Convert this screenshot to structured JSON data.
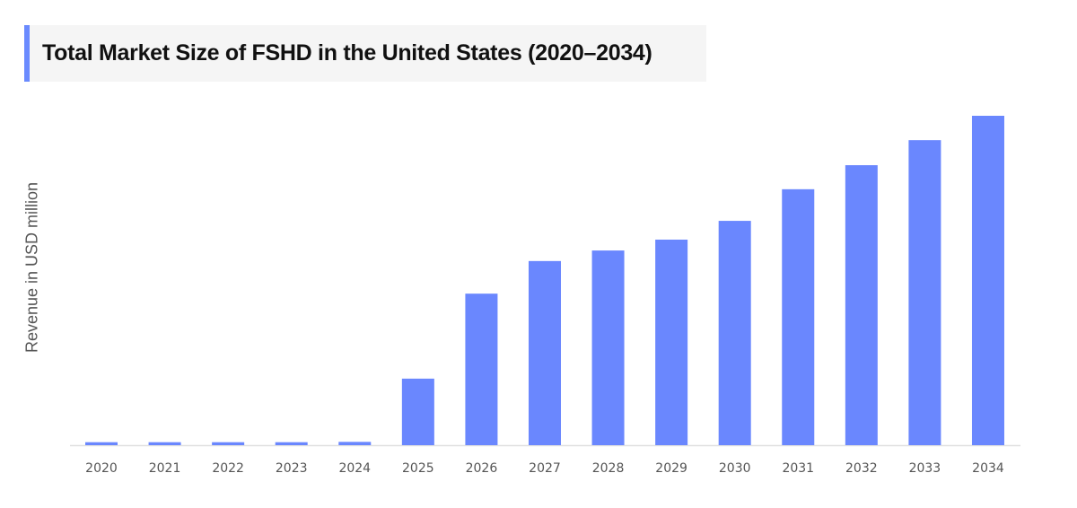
{
  "chart_data": {
    "type": "bar",
    "title": "Total Market Size of FSHD in the United States (2020–2034)",
    "xlabel": "",
    "ylabel": "Revenue in USD million",
    "categories": [
      "2020",
      "2021",
      "2022",
      "2023",
      "2024",
      "2025",
      "2026",
      "2027",
      "2028",
      "2029",
      "2030",
      "2031",
      "2032",
      "2033",
      "2034"
    ],
    "values": [
      0.9,
      0.9,
      0.9,
      0.9,
      1.0,
      20.2,
      46.0,
      55.9,
      59.1,
      62.4,
      68.1,
      77.7,
      85.0,
      92.6,
      100
    ],
    "ylim": [
      0,
      100
    ],
    "y_ticks_shown": false,
    "grid": false,
    "legend": "none",
    "colors": {
      "bar": "#6a87fe",
      "accent": "#6a8afe",
      "axis": "#e0e0e0"
    }
  }
}
